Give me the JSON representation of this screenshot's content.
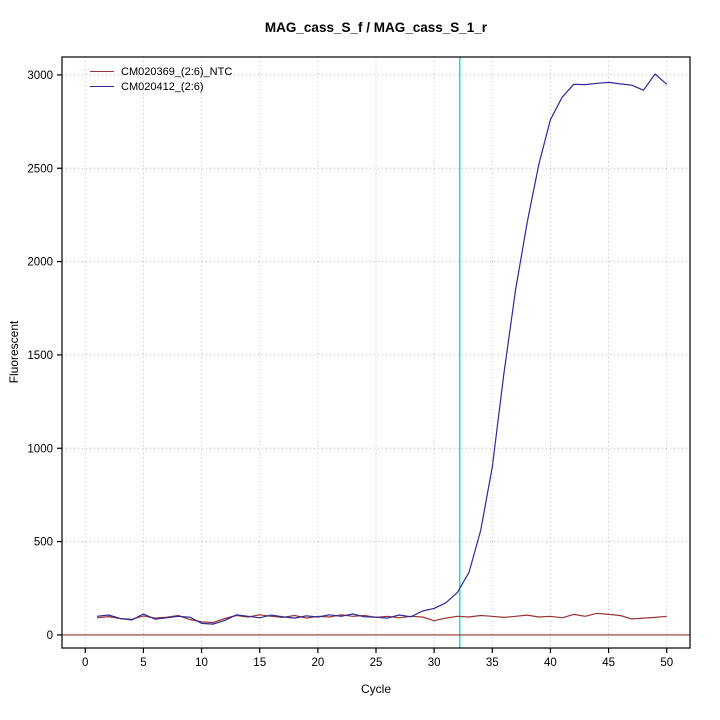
{
  "title": "MAG_cass_S_f / MAG_cass_S_1_r",
  "chart_data": {
    "type": "line",
    "title": "MAG_cass_S_f / MAG_cass_S_1_r",
    "xlabel": "Cycle",
    "ylabel": "Fluorescent",
    "xlim": [
      -2,
      52
    ],
    "ylim": [
      -70,
      3096
    ],
    "x_ticks": [
      0,
      5,
      10,
      15,
      20,
      25,
      30,
      35,
      40,
      45,
      50
    ],
    "y_ticks": [
      0,
      500,
      1000,
      1500,
      2000,
      2500,
      3000
    ],
    "grid": true,
    "grid_style": "dotted",
    "legend_position": "top-left",
    "x": [
      1,
      2,
      3,
      4,
      5,
      6,
      7,
      8,
      9,
      10,
      11,
      12,
      13,
      14,
      15,
      16,
      17,
      18,
      19,
      20,
      21,
      22,
      23,
      24,
      25,
      26,
      27,
      28,
      29,
      30,
      31,
      32,
      33,
      34,
      35,
      36,
      37,
      38,
      39,
      40,
      41,
      42,
      43,
      44,
      45,
      46,
      47,
      48,
      49,
      50
    ],
    "series": [
      {
        "name": "CM020369_(2:6)_NTC",
        "color": "#993333",
        "values": [
          92,
          98,
          88,
          84,
          102,
          90,
          95,
          104,
          82,
          70,
          66,
          88,
          104,
          96,
          108,
          100,
          94,
          104,
          90,
          100,
          96,
          108,
          100,
          104,
          94,
          100,
          92,
          100,
          96,
          76,
          90,
          100,
          96,
          104,
          100,
          94,
          100,
          106,
          96,
          100,
          92,
          110,
          100,
          116,
          110,
          104,
          86,
          90,
          94,
          100
        ]
      },
      {
        "name": "CM020412_(2:6)",
        "color": "#2a2a9c",
        "values": [
          100,
          107,
          88,
          80,
          112,
          85,
          92,
          100,
          95,
          62,
          58,
          78,
          108,
          100,
          92,
          106,
          97,
          90,
          102,
          96,
          108,
          100,
          112,
          97,
          95,
          90,
          107,
          97,
          128,
          142,
          172,
          228,
          335,
          560,
          900,
          1400,
          1850,
          2210,
          2520,
          2760,
          2880,
          2950,
          2948,
          2955,
          2960,
          2952,
          2945,
          2918,
          3005,
          2950
        ]
      }
    ],
    "threshold_line": {
      "y": 0,
      "color": "#993333"
    },
    "crossing_vline": {
      "x": 32.2,
      "color": "#00e0e0"
    },
    "colors": {
      "grid": "#bbbbbb",
      "axis": "#000000",
      "background": "#ffffff"
    }
  }
}
